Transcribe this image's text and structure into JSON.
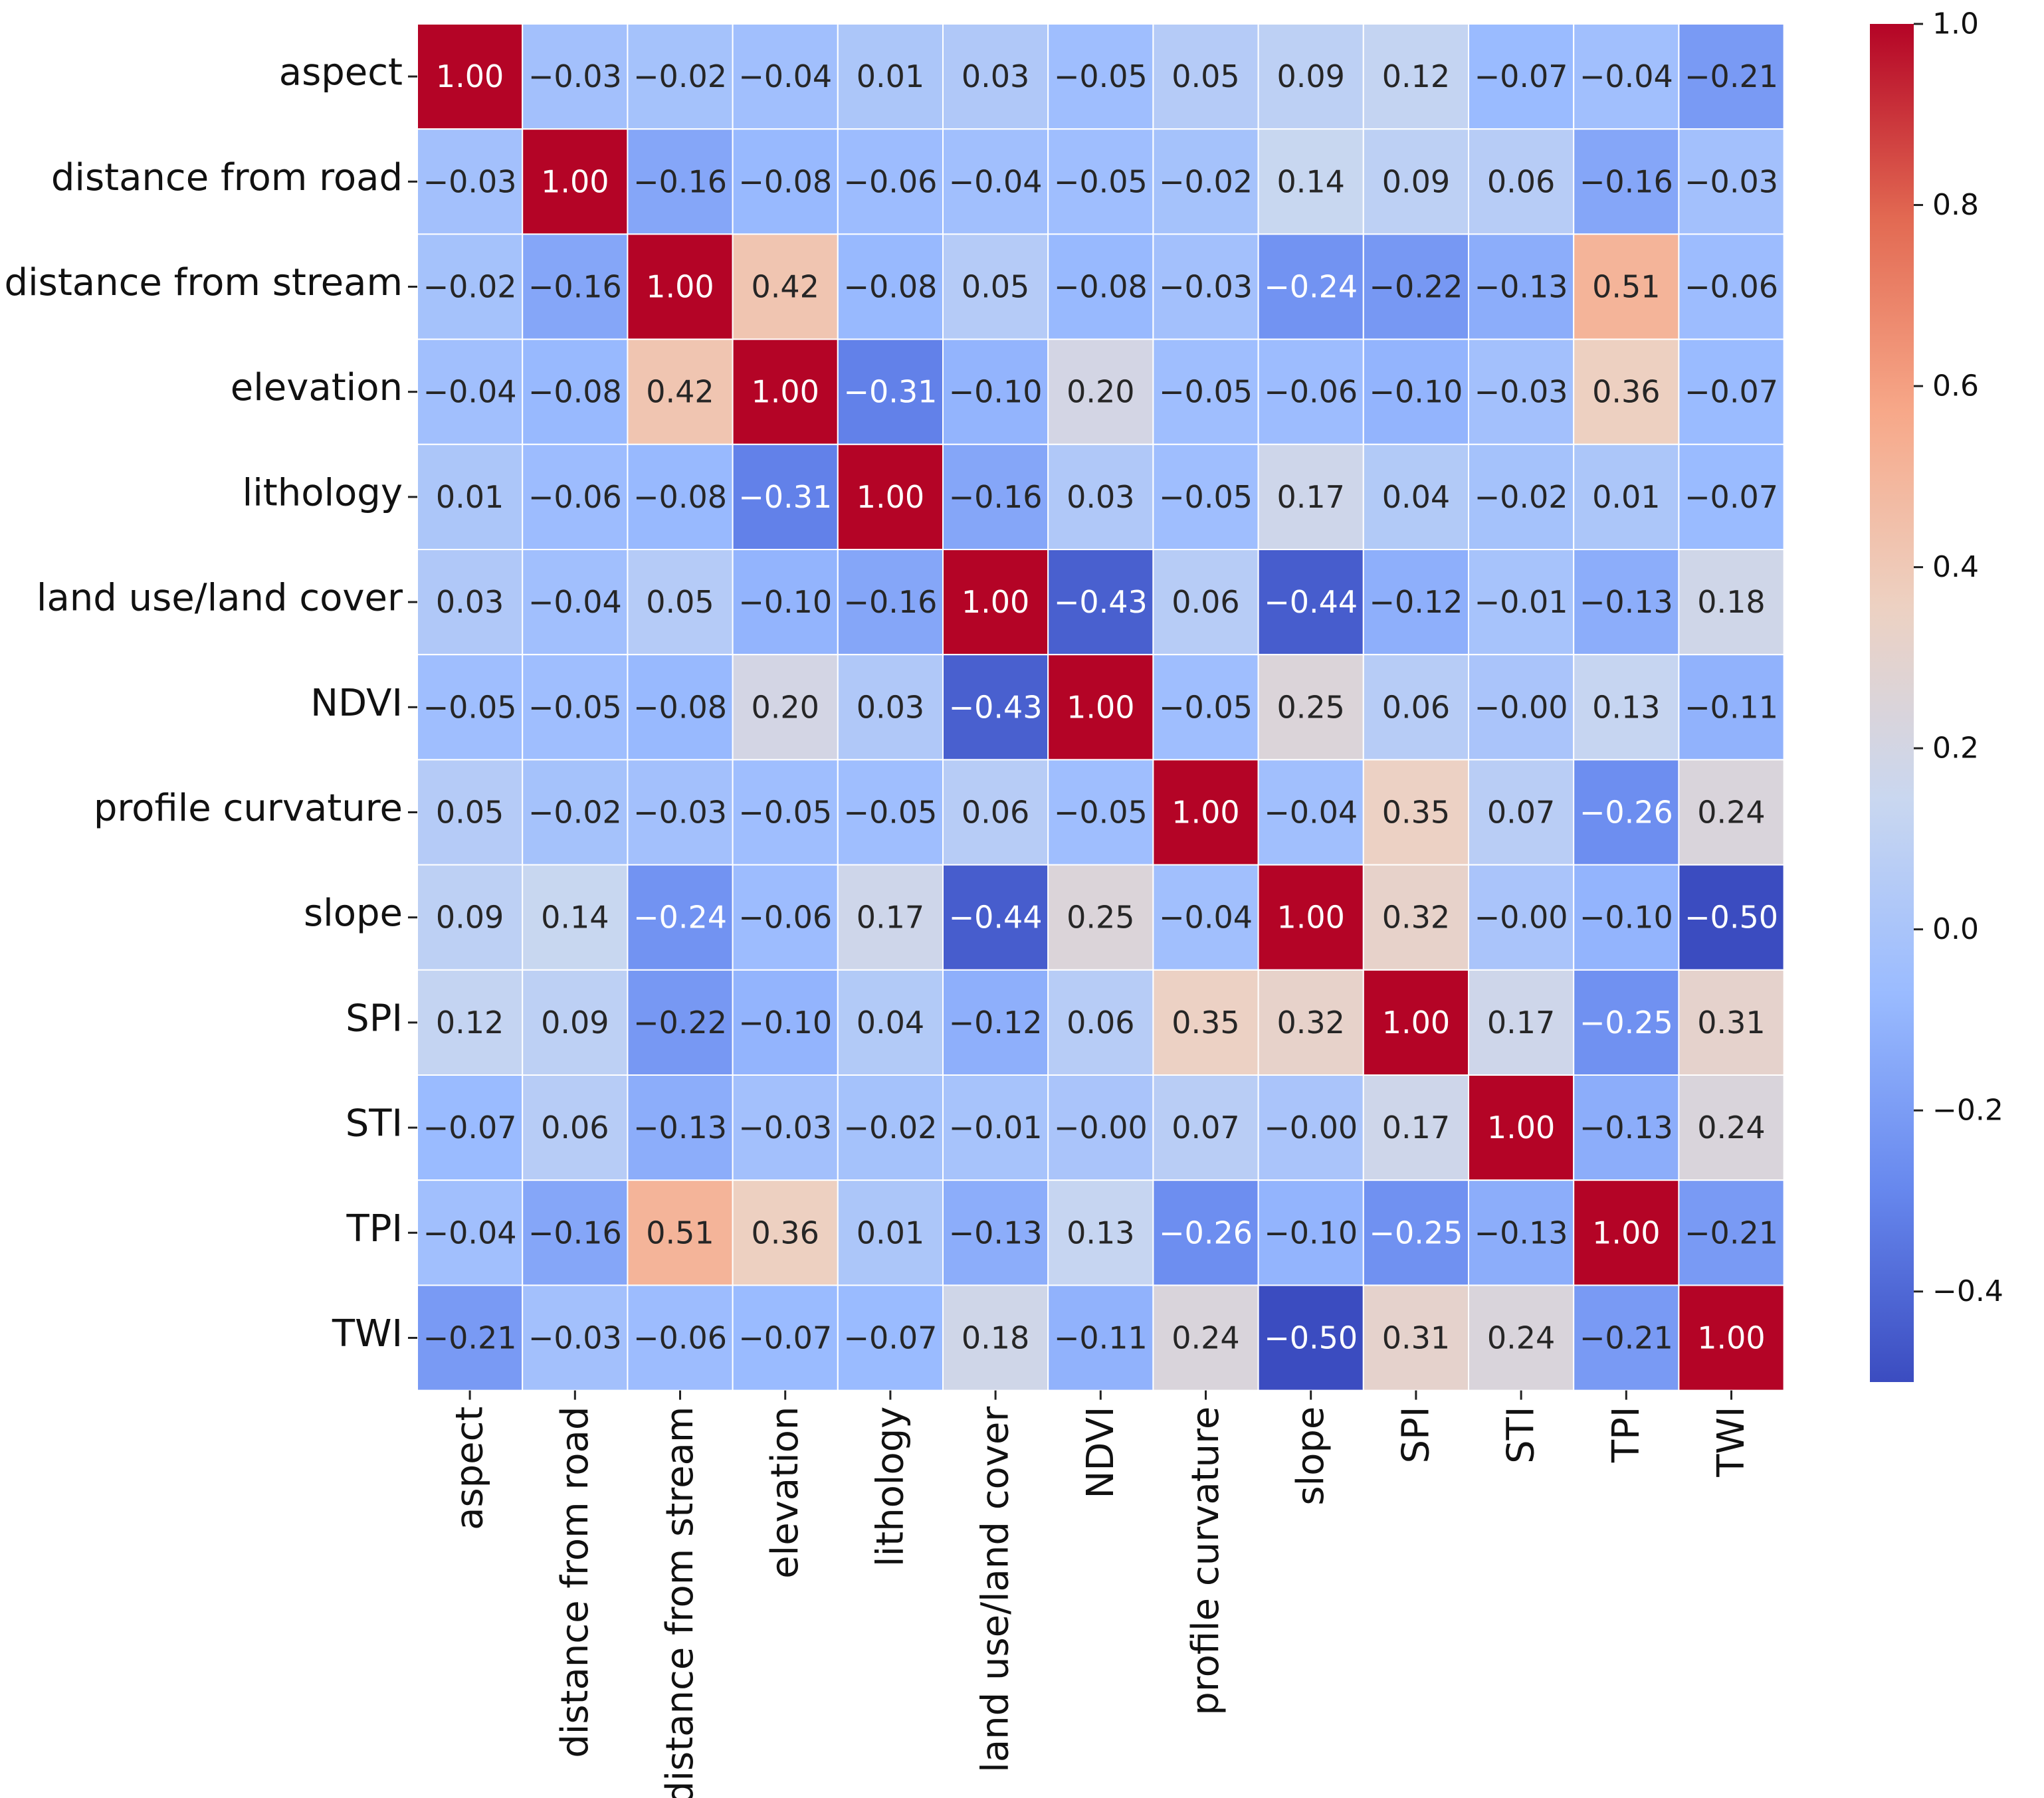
{
  "chart_data": {
    "type": "heatmap",
    "title": "",
    "xlabel": "",
    "ylabel": "",
    "variables": [
      "aspect",
      "distance from road",
      "distance from stream",
      "elevation",
      "lithology",
      "land use/land cover",
      "NDVI",
      "profile curvature",
      "slope",
      "SPI",
      "STI",
      "TPI",
      "TWI"
    ],
    "matrix": [
      [
        1.0,
        -0.03,
        -0.02,
        -0.04,
        0.01,
        0.03,
        -0.05,
        0.05,
        0.09,
        0.12,
        -0.07,
        -0.04,
        -0.21
      ],
      [
        -0.03,
        1.0,
        -0.16,
        -0.08,
        -0.06,
        -0.04,
        -0.05,
        -0.02,
        0.14,
        0.09,
        0.06,
        -0.16,
        -0.03
      ],
      [
        -0.02,
        -0.16,
        1.0,
        0.42,
        -0.08,
        0.05,
        -0.08,
        -0.03,
        -0.24,
        -0.22,
        -0.13,
        0.51,
        -0.06
      ],
      [
        -0.04,
        -0.08,
        0.42,
        1.0,
        -0.31,
        -0.1,
        0.2,
        -0.05,
        -0.06,
        -0.1,
        -0.03,
        0.36,
        -0.07
      ],
      [
        0.01,
        -0.06,
        -0.08,
        -0.31,
        1.0,
        -0.16,
        0.03,
        -0.05,
        0.17,
        0.04,
        -0.02,
        0.01,
        -0.07
      ],
      [
        0.03,
        -0.04,
        0.05,
        -0.1,
        -0.16,
        1.0,
        -0.43,
        0.06,
        -0.44,
        -0.12,
        -0.01,
        -0.13,
        0.18
      ],
      [
        -0.05,
        -0.05,
        -0.08,
        0.2,
        0.03,
        -0.43,
        1.0,
        -0.05,
        0.25,
        0.06,
        -0.0,
        0.13,
        -0.11
      ],
      [
        0.05,
        -0.02,
        -0.03,
        -0.05,
        -0.05,
        0.06,
        -0.05,
        1.0,
        -0.04,
        0.35,
        0.07,
        -0.26,
        0.24
      ],
      [
        0.09,
        0.14,
        -0.24,
        -0.06,
        0.17,
        -0.44,
        0.25,
        -0.04,
        1.0,
        0.32,
        -0.0,
        -0.1,
        -0.5
      ],
      [
        0.12,
        0.09,
        -0.22,
        -0.1,
        0.04,
        -0.12,
        0.06,
        0.35,
        0.32,
        1.0,
        0.17,
        -0.25,
        0.31
      ],
      [
        -0.07,
        0.06,
        -0.13,
        -0.03,
        -0.02,
        -0.01,
        -0.0,
        0.07,
        -0.0,
        0.17,
        1.0,
        -0.13,
        0.24
      ],
      [
        -0.04,
        -0.16,
        0.51,
        0.36,
        0.01,
        -0.13,
        0.13,
        -0.26,
        -0.1,
        -0.25,
        -0.13,
        1.0,
        -0.21
      ],
      [
        -0.21,
        -0.03,
        -0.06,
        -0.07,
        -0.07,
        0.18,
        -0.11,
        0.24,
        -0.5,
        0.31,
        0.24,
        -0.21,
        1.0
      ]
    ],
    "value_format": "2 decimals",
    "colormap": "coolwarm",
    "colormap_stops": [
      "#3b4cc0",
      "#6788ee",
      "#9abbff",
      "#c9d7f0",
      "#edd1c2",
      "#f7a889",
      "#e26952",
      "#b40426"
    ],
    "color_range": [
      -0.5,
      1.0
    ],
    "colorbar": {
      "ticks": [
        1.0,
        0.8,
        0.6,
        0.4,
        0.2,
        0.0,
        -0.2,
        -0.4
      ],
      "tick_labels": [
        "1.0",
        "0.8",
        "0.6",
        "0.4",
        "0.2",
        "0.0",
        "−0.2",
        "−0.4"
      ],
      "placement": "right"
    },
    "grid_lines": "white",
    "minus_sign": "−"
  }
}
